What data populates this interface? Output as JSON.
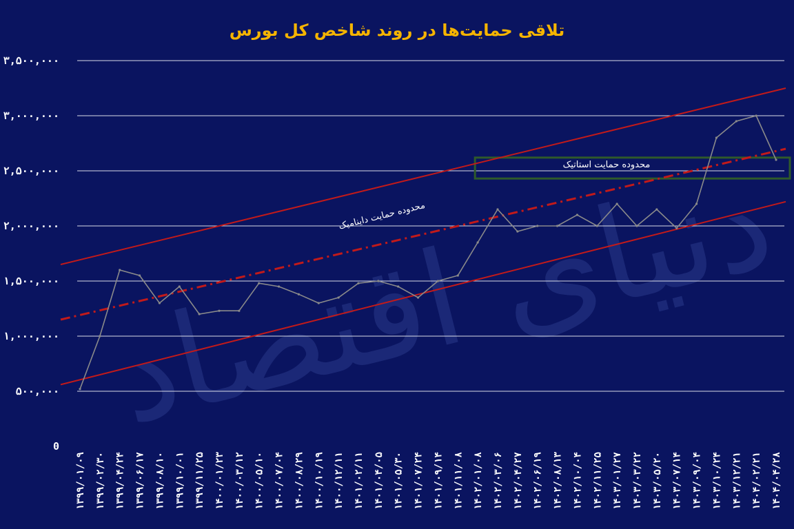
{
  "colors": {
    "background": "#0a1460",
    "title": "#f5b400",
    "index_line": "#8a8a8a",
    "channel": "#c21a1a",
    "dynamic_support": "#c21a1a",
    "static_box": "#2f5a2a",
    "grid": "#ffffff"
  },
  "watermark": "دنیای اقتصاد",
  "chart_data": {
    "type": "line",
    "title": "تلاقی حمایت‌ها در روند شاخص کل بورس",
    "xlabel": "",
    "ylabel": "",
    "ylim": [
      0,
      3500000
    ],
    "y_ticks": [
      0,
      500000,
      1000000,
      1500000,
      2000000,
      2500000,
      3000000,
      3500000
    ],
    "y_tick_labels": [
      "0",
      "۵۰۰,۰۰۰",
      "۱,۰۰۰,۰۰۰",
      "۱,۵۰۰,۰۰۰",
      "۲,۰۰۰,۰۰۰",
      "۲,۵۰۰,۰۰۰",
      "۳,۰۰۰,۰۰۰",
      "۳,۵۰۰,۰۰۰"
    ],
    "grid": true,
    "categories": [
      "۱۳۹۹/۰۱/۰۹",
      "۱۳۹۹/۰۲/۳۰",
      "۱۳۹۹/۰۴/۲۴",
      "۱۳۹۹/۰۶/۱۷",
      "۱۳۹۹/۰۸/۱۰",
      "۱۳۹۹/۱۰/۰۱",
      "۱۳۹۹/۱۱/۲۵",
      "۱۴۰۰/۰۱/۲۳",
      "۱۴۰۰/۰۳/۱۲",
      "۱۴۰۰/۰۵/۱۰",
      "۱۴۰۰/۰۷/۰۴",
      "۱۴۰۰/۰۸/۲۹",
      "۱۴۰۰/۱۰/۱۹",
      "۱۴۰۰/۱۲/۱۱",
      "۱۴۰۱/۰۲/۱۱",
      "۱۴۰۱/۰۴/۰۵",
      "۱۴۰۱/۰۵/۳۰",
      "۱۴۰۱/۰۷/۲۴",
      "۱۴۰۱/۰۹/۱۴",
      "۱۴۰۱/۱۱/۰۸",
      "۱۴۰۲/۰۱/۰۸",
      "۱۴۰۲/۰۳/۰۶",
      "۱۴۰۲/۰۴/۲۷",
      "۱۴۰۲/۰۶/۱۹",
      "۱۴۰۲/۰۸/۱۳",
      "۱۴۰۲/۱۰/۰۴",
      "۱۴۰۲/۱۱/۲۵",
      "۱۴۰۳/۰۱/۲۷",
      "۱۴۰۳/۰۳/۲۲",
      "۱۴۰۳/۰۵/۲۰",
      "۱۴۰۳/۰۷/۱۴",
      "۱۴۰۳/۰۹/۰۴",
      "۱۴۰۳/۱۰/۲۴",
      "۱۴۰۳/۱۲/۲۱",
      "۱۴۰۴/۰۲/۲۱",
      "۱۴۰۴/۰۴/۲۸"
    ],
    "series": [
      {
        "values": [
          520000,
          1000000,
          1600000,
          1550000,
          1300000,
          1450000,
          1200000,
          1230000,
          1230000,
          1480000,
          1450000,
          1380000,
          1300000,
          1350000,
          1480000,
          1500000,
          1450000,
          1350000,
          1500000,
          1550000,
          1850000,
          2150000,
          1950000,
          2000000,
          2000000,
          2100000,
          2000000,
          2200000,
          2000000,
          2150000,
          1980000,
          2200000,
          2800000,
          2950000,
          3000000,
          2600000
        ]
      }
    ],
    "lines": [
      {
        "kind": "upper-channel",
        "x_start": "۱۳۹۹/۰۱/۰۹",
        "y_start": 1650000,
        "x_end": "۱۴۰۴/۰۴/۲۸",
        "y_end": 3250000
      },
      {
        "kind": "dynamic-support",
        "x_start": "۱۳۹۹/۰۱/۰۹",
        "y_start": 1150000,
        "x_end": "۱۴۰۴/۰۴/۲۸",
        "y_end": 2700000
      },
      {
        "kind": "lower-channel",
        "x_start": "۱۳۹۹/۰۱/۰۹",
        "y_start": 560000,
        "x_end": "۱۴۰۴/۰۴/۲۸",
        "y_end": 2220000
      }
    ],
    "static_zone": {
      "x_start": "۱۴۰۲/۰۱/۰۸",
      "x_end": "۱۴۰۴/۰۴/۲۸",
      "y_low": 2430000,
      "y_high": 2620000
    },
    "annotations": [
      {
        "text": "محدوده حمایت دایناميک",
        "target": "dynamic-support"
      },
      {
        "text": "محدوده حمایت استاتیک",
        "target": "static_zone"
      }
    ]
  }
}
